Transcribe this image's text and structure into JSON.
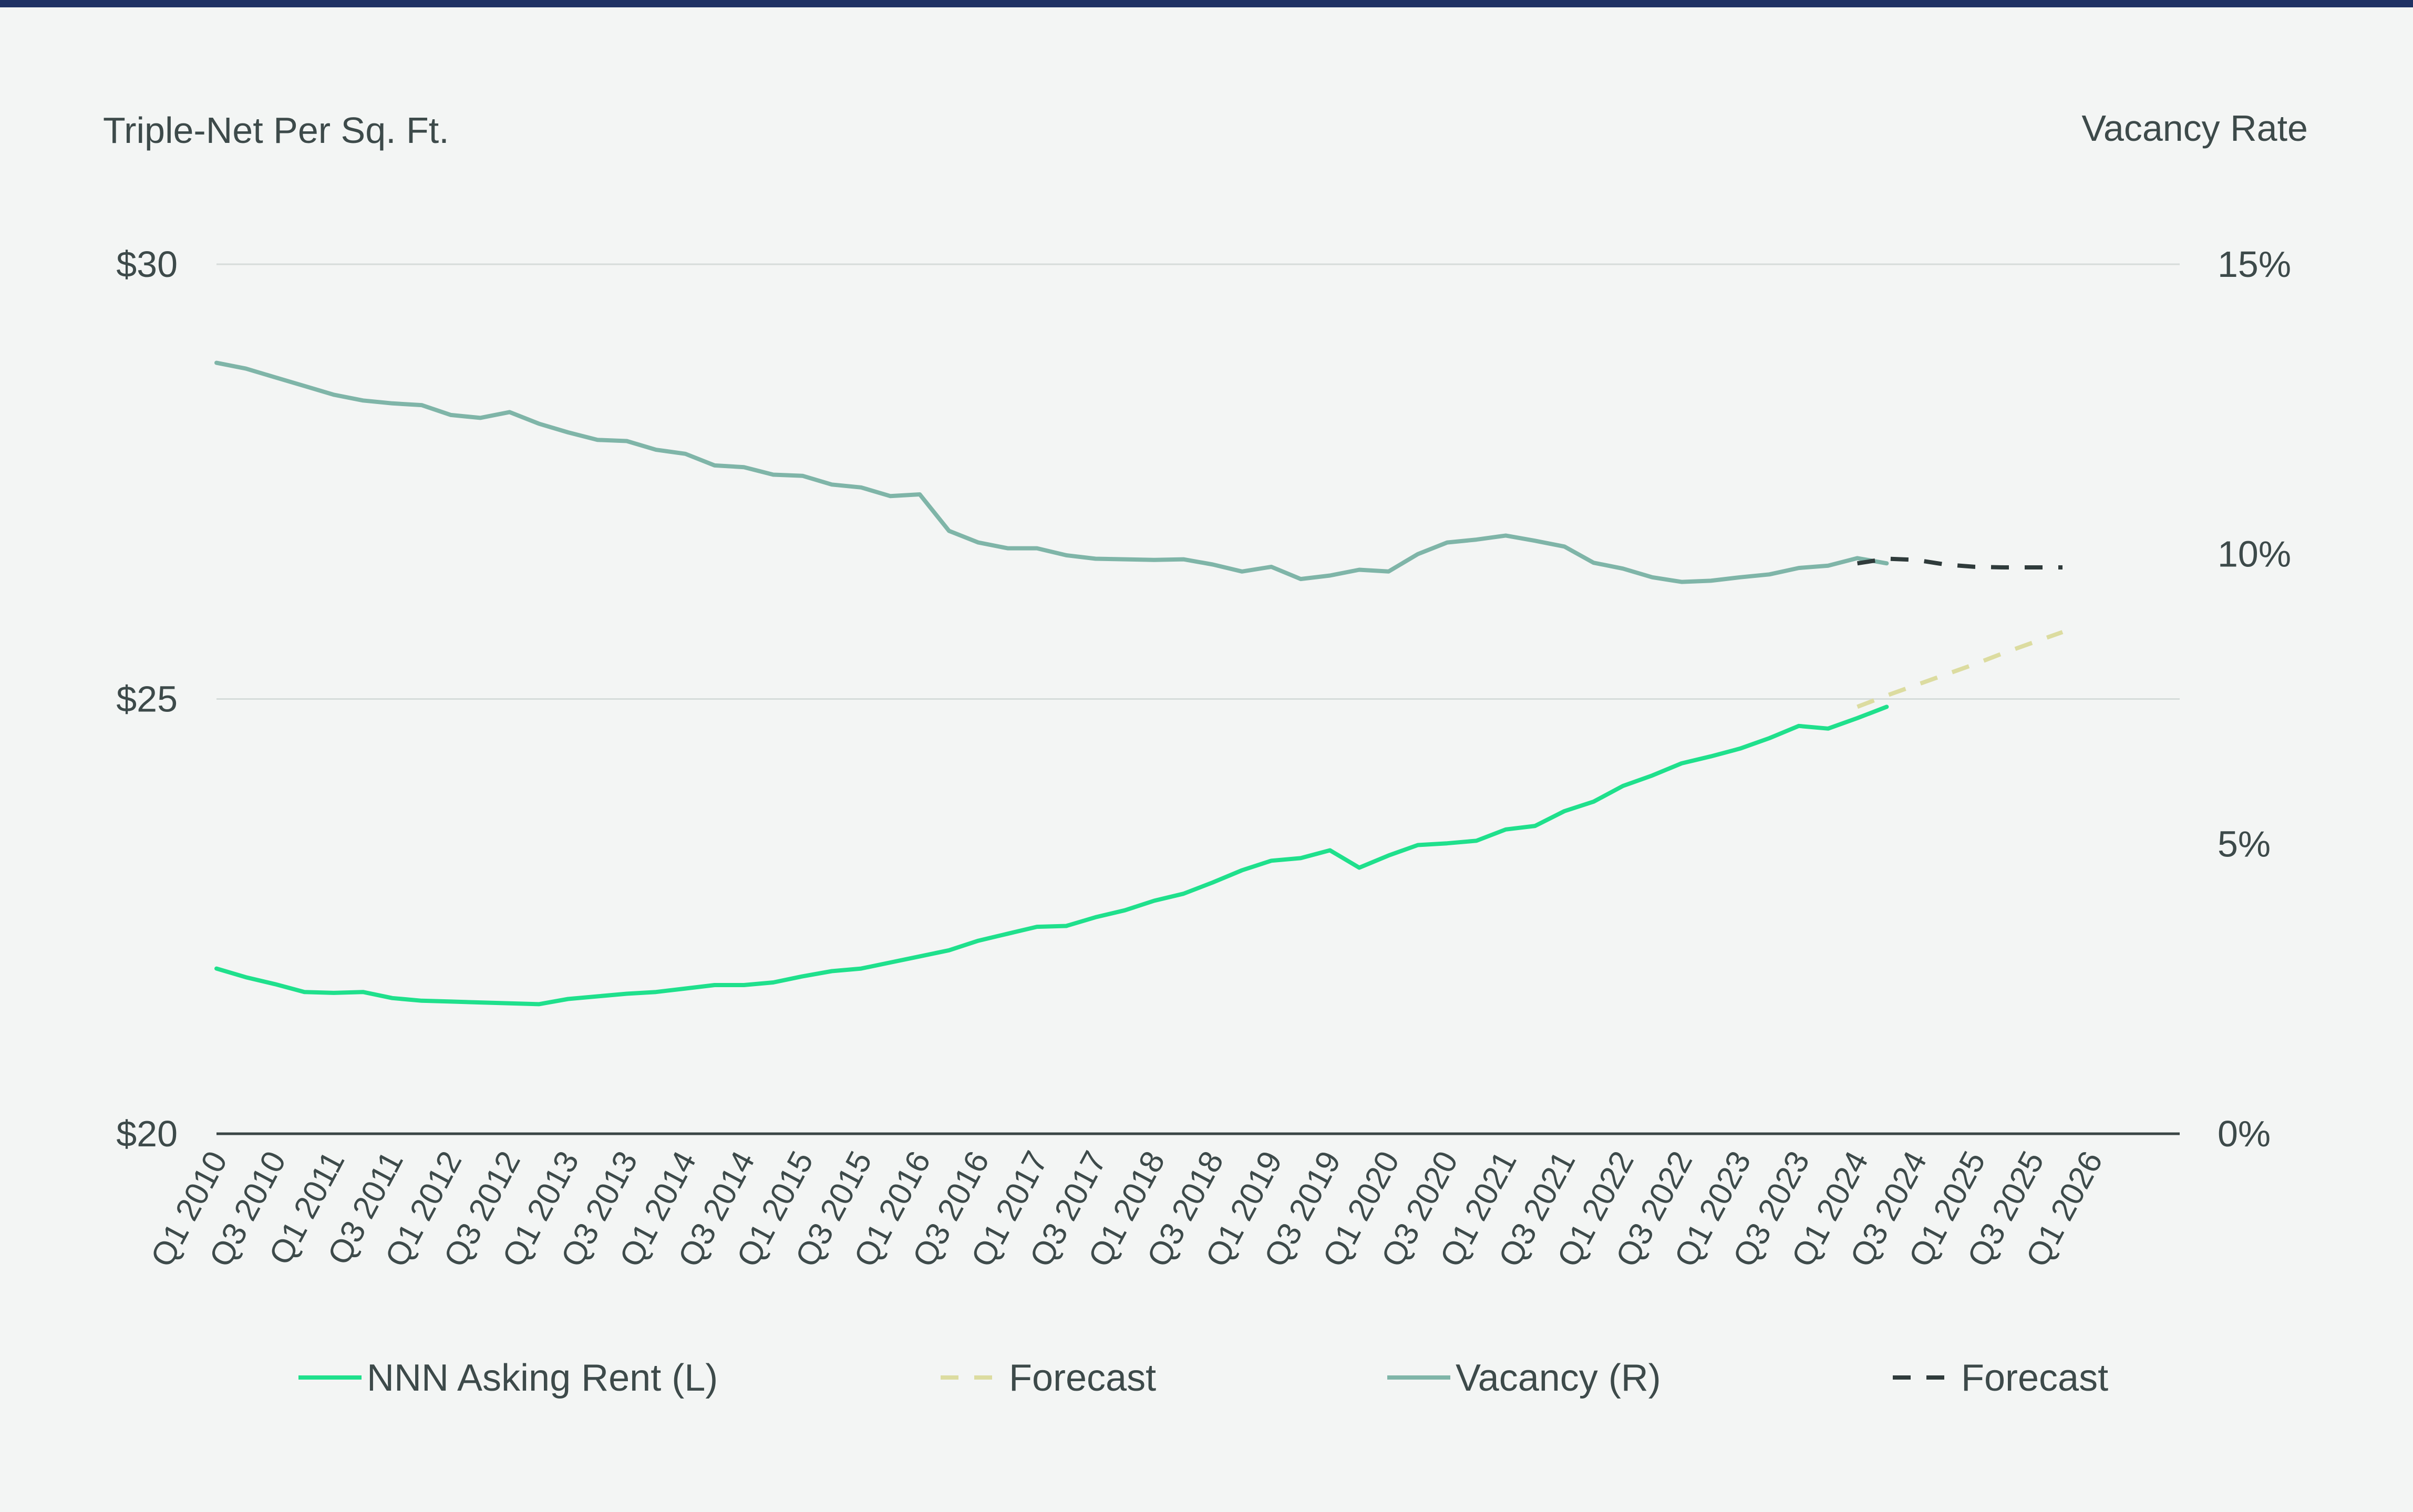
{
  "chart_data": {
    "type": "line",
    "left_axis_title": "Triple-Net Per Sq. Ft.",
    "right_axis_title": "Vacancy Rate",
    "left_ticks": [
      "$20",
      "$25",
      "$30"
    ],
    "right_ticks": [
      "0%",
      "5%",
      "10%",
      "15%"
    ],
    "left_ylim": [
      20,
      30
    ],
    "right_ylim": [
      0,
      15
    ],
    "grid": true,
    "legend_position": "bottom",
    "x_tick_labels": [
      "Q1 2010",
      "Q3 2010",
      "Q1 2011",
      "Q3 2011",
      "Q1 2012",
      "Q3 2012",
      "Q1 2013",
      "Q3 2013",
      "Q1 2014",
      "Q3 2014",
      "Q1 2015",
      "Q3 2015",
      "Q1 2016",
      "Q3 2016",
      "Q1 2017",
      "Q3 2017",
      "Q1 2018",
      "Q3 2018",
      "Q1 2019",
      "Q3 2019",
      "Q1 2020",
      "Q3 2020",
      "Q1 2021",
      "Q3 2021",
      "Q1 2022",
      "Q3 2022",
      "Q1 2023",
      "Q3 2023",
      "Q1 2024",
      "Q3 2024",
      "Q1 2025",
      "Q3 2025",
      "Q1 2026"
    ],
    "x_start": "Q1 2010",
    "colors": {
      "rent": "#1fe08c",
      "rent_forecast": "#dcdca0",
      "vacancy": "#7fb5a8",
      "vacancy_forecast": "#2f3b3b",
      "grid": "#d6dcda",
      "axis": "#3a4545"
    },
    "series": [
      {
        "name": "NNN Asking Rent (L)",
        "axis": "left",
        "start": "Q1 2010",
        "values": [
          21.9,
          21.8,
          21.72,
          21.63,
          21.62,
          21.63,
          21.56,
          21.53,
          21.52,
          21.51,
          21.5,
          21.49,
          21.55,
          21.58,
          21.61,
          21.63,
          21.67,
          21.71,
          21.71,
          21.74,
          21.81,
          21.87,
          21.9,
          21.97,
          22.04,
          22.11,
          22.22,
          22.3,
          22.38,
          22.39,
          22.49,
          22.57,
          22.68,
          22.76,
          22.89,
          23.03,
          23.14,
          23.17,
          23.26,
          23.06,
          23.2,
          23.32,
          23.34,
          23.37,
          23.5,
          23.54,
          23.71,
          23.82,
          24.0,
          24.12,
          24.26,
          24.34,
          24.43,
          24.55,
          24.69,
          24.66,
          24.78,
          24.91
        ]
      },
      {
        "name": "Forecast",
        "axis": "left",
        "start": "Q1 2024",
        "values": [
          24.91,
          25.04,
          25.16,
          25.28,
          25.4,
          25.53,
          25.65,
          25.77
        ]
      },
      {
        "name": "Vacancy (R)",
        "axis": "right",
        "start": "Q1 2010",
        "values": [
          13.3,
          13.2,
          13.05,
          12.9,
          12.75,
          12.65,
          12.6,
          12.57,
          12.4,
          12.35,
          12.45,
          12.25,
          12.1,
          11.97,
          11.95,
          11.8,
          11.73,
          11.53,
          11.5,
          11.37,
          11.35,
          11.2,
          11.15,
          11.0,
          11.03,
          10.4,
          10.2,
          10.1,
          10.1,
          9.98,
          9.92,
          9.91,
          9.9,
          9.91,
          9.82,
          9.7,
          9.78,
          9.57,
          9.63,
          9.73,
          9.7,
          10.0,
          10.2,
          10.25,
          10.32,
          10.23,
          10.13,
          9.85,
          9.75,
          9.6,
          9.52,
          9.54,
          9.6,
          9.65,
          9.76,
          9.8,
          9.93,
          9.84
        ]
      },
      {
        "name": "Forecast",
        "axis": "right",
        "start": "Q1 2024",
        "values": [
          9.84,
          9.92,
          9.9,
          9.82,
          9.78,
          9.77,
          9.77,
          9.77
        ]
      }
    ]
  },
  "legend": [
    {
      "label": "NNN Asking Rent (L)",
      "style": "solid",
      "color": "#1fe08c"
    },
    {
      "label": "Forecast",
      "style": "dashed",
      "color": "#dcdca0"
    },
    {
      "label": "Vacancy (R)",
      "style": "solid",
      "color": "#7fb5a8"
    },
    {
      "label": "Forecast",
      "style": "dashed",
      "color": "#2f3b3b"
    }
  ]
}
